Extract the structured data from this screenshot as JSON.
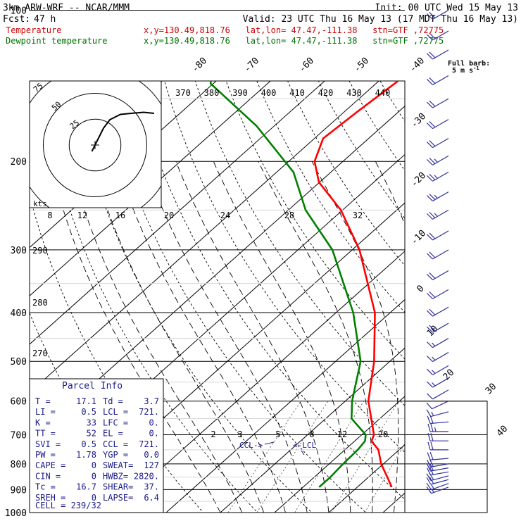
{
  "header": {
    "model": "3km ARW-WRF -- NCAR/MMM",
    "init": "Init: 00 UTC Wed 15 May 13",
    "fcst_label": "Fcst:",
    "fcst_value": "47 h",
    "valid": "Valid: 23 UTC Thu 16 May 13 (17 MDT Thu 16 May 13)",
    "temp_label": "Temperature",
    "temp_loc": "x,y=130.49,818.76   lat,lon= 47.47,-111.38   stn=GTF ,72775",
    "dew_label": "Dewpoint temperature",
    "dew_loc": "x,y=130.49,818.76   lat,lon= 47.47,-111.38   stn=GTF ,72775"
  },
  "colors": {
    "temperature": "#ff0000",
    "dewpoint": "#008000",
    "text_red": "#cc0000",
    "text_green": "#007000",
    "barb": "#3030a0",
    "info": "#1a1a8a",
    "grid": "#000000"
  },
  "barb_key": {
    "line1": "Full barb:",
    "line2": "5 m s",
    "sup": "-1"
  },
  "hodograph": {
    "units_label": "kts",
    "ring_labels": [
      "25",
      "50",
      "75"
    ]
  },
  "parcel_info": {
    "title": "Parcel Info",
    "rows": [
      {
        "l1": "T  =",
        "v1": "17.1",
        "l2": "Td =",
        "v2": "3.7"
      },
      {
        "l1": "LI =",
        "v1": "0.5",
        "l2": "LCL =",
        "v2": "721."
      },
      {
        "l1": "K  =",
        "v1": "33",
        "l2": "LFC =",
        "v2": "0."
      },
      {
        "l1": "TT =",
        "v1": "52",
        "l2": "EL  =",
        "v2": "0."
      },
      {
        "l1": "SVI =",
        "v1": "0.5",
        "l2": "CCL =",
        "v2": "721."
      },
      {
        "l1": "PW =",
        "v1": "1.78",
        "l2": "YGP =",
        "v2": "0.0"
      },
      {
        "l1": "CAPE =",
        "v1": "0",
        "l2": "SWEAT=",
        "v2": "127"
      },
      {
        "l1": "CIN =",
        "v1": "0",
        "l2": "HWBZ=",
        "v2": "2820."
      },
      {
        "l1": "Tc =",
        "v1": "16.7",
        "l2": "SHEAR=",
        "v2": "37."
      },
      {
        "l1": "SREH =",
        "v1": "0",
        "l2": "LAPSE=",
        "v2": "6.4"
      }
    ],
    "cell": "CELL = 239/32"
  },
  "annotations": {
    "ccl": "CCL->",
    "lcl": "<-LCL"
  },
  "chart_data": {
    "type": "line",
    "title": "",
    "pressure_ticks": [
      100,
      200,
      300,
      400,
      500,
      600,
      700,
      800,
      900,
      1000
    ],
    "temperature_ticks": [
      -40,
      -30,
      -20,
      -10,
      0,
      10,
      20,
      30,
      40
    ],
    "temperature_ticks_top": [
      -80,
      -70,
      -60,
      -50
    ],
    "theta_labels": [
      "370",
      "380",
      "390",
      "400",
      "410",
      "420",
      "430",
      "440"
    ],
    "theta_labels_left": [
      "290",
      "280",
      "270"
    ],
    "mixing_ratio_labels_upper": [
      "8",
      "12",
      "16",
      "20",
      "24",
      "28",
      "32"
    ],
    "mixing_ratio_labels_lower": [
      "2",
      "3",
      "5",
      "8",
      "12",
      "20"
    ],
    "series": [
      {
        "name": "Temperature",
        "points": [
          [
            890,
            17.1
          ],
          [
            850,
            14.5
          ],
          [
            800,
            11.0
          ],
          [
            750,
            8.0
          ],
          [
            721,
            5.2
          ],
          [
            700,
            4.5
          ],
          [
            600,
            -2.5
          ],
          [
            500,
            -8.5
          ],
          [
            400,
            -17.0
          ],
          [
            300,
            -31.0
          ],
          [
            250,
            -41.5
          ],
          [
            220,
            -50.5
          ],
          [
            200,
            -55.0
          ],
          [
            180,
            -57.5
          ],
          [
            160,
            -56.0
          ],
          [
            130,
            -53.0
          ],
          [
            110,
            -51.0
          ],
          [
            100,
            -49.5
          ]
        ]
      },
      {
        "name": "Dewpoint temperature",
        "points": [
          [
            890,
            3.7
          ],
          [
            850,
            4.0
          ],
          [
            800,
            4.0
          ],
          [
            750,
            4.2
          ],
          [
            721,
            4.0
          ],
          [
            700,
            3.0
          ],
          [
            650,
            -2.5
          ],
          [
            600,
            -5.5
          ],
          [
            500,
            -11.0
          ],
          [
            400,
            -21.0
          ],
          [
            300,
            -36.0
          ],
          [
            250,
            -48.0
          ],
          [
            210,
            -57.0
          ],
          [
            170,
            -72.0
          ],
          [
            140,
            -88.0
          ],
          [
            125,
            -92.0
          ],
          [
            110,
            -82.0
          ],
          [
            100,
            -73.0
          ]
        ]
      }
    ],
    "hodograph_trace": [
      [
        -1.5,
        -3.0
      ],
      [
        1.0,
        2.0
      ],
      [
        4.0,
        8.0
      ],
      [
        7.0,
        12.0
      ],
      [
        12.0,
        14.5
      ],
      [
        17.0,
        15.0
      ],
      [
        23.0,
        15.5
      ],
      [
        28.0,
        15.0
      ]
    ],
    "wind_barbs": [
      {
        "p": 890,
        "dir": 250,
        "spd": 8
      },
      {
        "p": 875,
        "dir": 250,
        "spd": 8
      },
      {
        "p": 860,
        "dir": 255,
        "spd": 9
      },
      {
        "p": 845,
        "dir": 255,
        "spd": 9
      },
      {
        "p": 830,
        "dir": 260,
        "spd": 10
      },
      {
        "p": 815,
        "dir": 260,
        "spd": 10
      },
      {
        "p": 800,
        "dir": 260,
        "spd": 10
      },
      {
        "p": 780,
        "dir": 265,
        "spd": 10
      },
      {
        "p": 750,
        "dir": 270,
        "spd": 10
      },
      {
        "p": 720,
        "dir": 270,
        "spd": 10
      },
      {
        "p": 690,
        "dir": 270,
        "spd": 12
      },
      {
        "p": 660,
        "dir": 265,
        "spd": 10
      },
      {
        "p": 630,
        "dir": 255,
        "spd": 8
      },
      {
        "p": 600,
        "dir": 245,
        "spd": 6
      },
      {
        "p": 570,
        "dir": 240,
        "spd": 6
      },
      {
        "p": 540,
        "dir": 240,
        "spd": 7
      },
      {
        "p": 510,
        "dir": 240,
        "spd": 7
      },
      {
        "p": 480,
        "dir": 240,
        "spd": 8
      },
      {
        "p": 450,
        "dir": 240,
        "spd": 8
      },
      {
        "p": 420,
        "dir": 240,
        "spd": 9
      },
      {
        "p": 390,
        "dir": 240,
        "spd": 9
      },
      {
        "p": 360,
        "dir": 240,
        "spd": 10
      },
      {
        "p": 330,
        "dir": 240,
        "spd": 10
      },
      {
        "p": 300,
        "dir": 240,
        "spd": 11
      },
      {
        "p": 275,
        "dir": 240,
        "spd": 11
      },
      {
        "p": 250,
        "dir": 240,
        "spd": 12
      },
      {
        "p": 230,
        "dir": 240,
        "spd": 12
      },
      {
        "p": 210,
        "dir": 240,
        "spd": 12
      },
      {
        "p": 195,
        "dir": 240,
        "spd": 12
      },
      {
        "p": 180,
        "dir": 240,
        "spd": 11
      },
      {
        "p": 165,
        "dir": 240,
        "spd": 10
      },
      {
        "p": 150,
        "dir": 240,
        "spd": 10
      },
      {
        "p": 135,
        "dir": 240,
        "spd": 10
      },
      {
        "p": 120,
        "dir": 240,
        "spd": 10
      },
      {
        "p": 110,
        "dir": 240,
        "spd": 9
      },
      {
        "p": 100,
        "dir": 240,
        "spd": 9
      }
    ]
  }
}
